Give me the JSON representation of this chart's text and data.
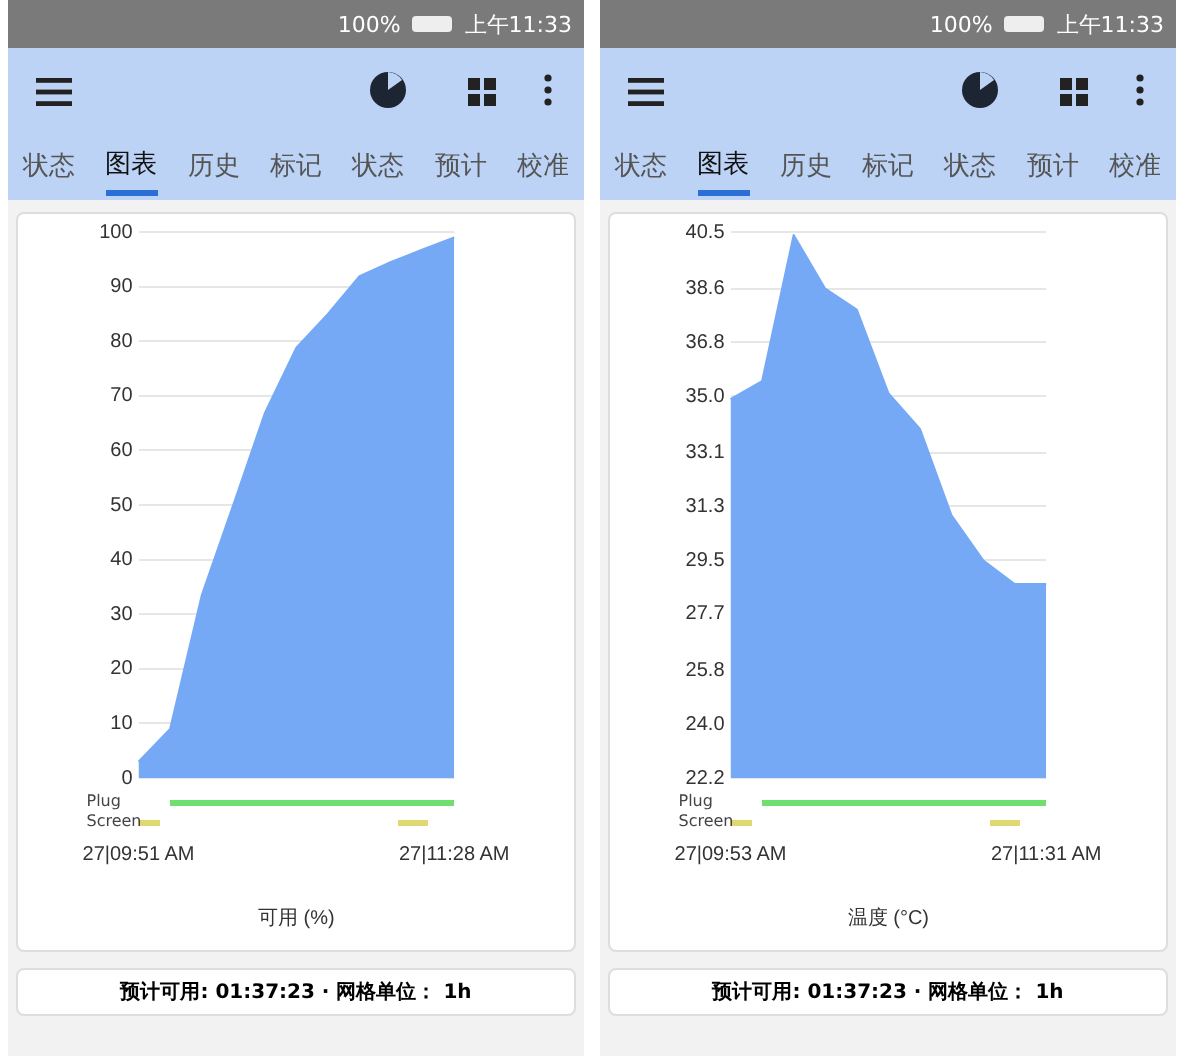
{
  "chart_data": [
    {
      "type": "area",
      "xlabel": "可用 (%)",
      "color": "#75a9f6",
      "marker": "none",
      "grid": "y",
      "categories": [
        "27|09:51 AM",
        null,
        null,
        null,
        null,
        null,
        null,
        null,
        null,
        null,
        "27|11:28 AM"
      ],
      "values": [
        3,
        9,
        33.4,
        50,
        66.8,
        78.8,
        85,
        91.9,
        94.5,
        96.8,
        99
      ],
      "ylim": [
        0,
        100
      ],
      "yticks": [
        0,
        10,
        20,
        30,
        40,
        50,
        60,
        70,
        80,
        90,
        100
      ],
      "annotations": [
        "100%",
        "上午11:33",
        "状态",
        "图表",
        "历史",
        "标记",
        "状态",
        "预计",
        "校准",
        "Plug",
        "Screen",
        "预计可用: 01:37:23 · 网格单位： 1h"
      ]
    },
    {
      "type": "area",
      "xlabel": "温度 (°C)",
      "color": "#75a9f6",
      "marker": "none",
      "grid": "y",
      "categories": [
        "27|09:53 AM",
        null,
        null,
        null,
        null,
        null,
        null,
        null,
        null,
        null,
        "27|11:31 AM"
      ],
      "values": [
        34.9,
        35.5,
        40.4,
        38.6,
        37.9,
        35.1,
        33.9,
        31.0,
        29.5,
        28.7,
        28.7
      ],
      "ylim": [
        22.2,
        40.5
      ],
      "yticks": [
        22.2,
        {
          "value": 24,
          "label": "24.0"
        },
        25.8,
        27.7,
        29.5,
        31.3,
        33.1,
        {
          "value": 35,
          "label": "35.0"
        },
        36.8,
        38.6,
        40.5
      ],
      "annotations": [
        "100%",
        "上午11:33",
        "状态",
        "图表",
        "历史",
        "标记",
        "状态",
        "预计",
        "校准",
        "Plug",
        "Screen",
        "预计可用: 01:37:23 · 网格单位： 1h"
      ]
    }
  ]
}
